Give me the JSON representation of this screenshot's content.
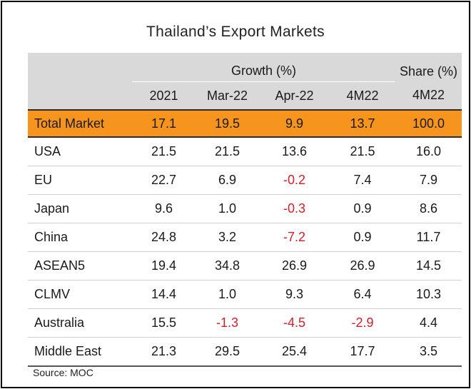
{
  "chart_data": {
    "type": "table",
    "title": "Thailand’s Export Markets",
    "group_headers": {
      "growth": "Growth (%)",
      "share": "Share (%)"
    },
    "columns": [
      "2021",
      "Mar-22",
      "Apr-22",
      "4M22",
      "4M22"
    ],
    "total": {
      "label": "Total Market",
      "values": [
        "17.1",
        "19.5",
        "9.9",
        "13.7",
        "100.0"
      ]
    },
    "rows": [
      {
        "label": "USA",
        "values": [
          "21.5",
          "21.5",
          "13.6",
          "21.5",
          "16.0"
        ]
      },
      {
        "label": "EU",
        "values": [
          "22.7",
          "6.9",
          "-0.2",
          "7.4",
          "7.9"
        ]
      },
      {
        "label": "Japan",
        "values": [
          "9.6",
          "1.0",
          "-0.3",
          "0.9",
          "8.6"
        ]
      },
      {
        "label": "China",
        "values": [
          "24.8",
          "3.2",
          "-7.2",
          "0.9",
          "11.7"
        ]
      },
      {
        "label": "ASEAN5",
        "values": [
          "19.4",
          "34.8",
          "26.9",
          "26.9",
          "14.5"
        ]
      },
      {
        "label": "CLMV",
        "values": [
          "14.4",
          "1.0",
          "9.3",
          "6.4",
          "10.3"
        ]
      },
      {
        "label": "Australia",
        "values": [
          "15.5",
          "-1.3",
          "-4.5",
          "-2.9",
          "4.4"
        ]
      },
      {
        "label": "Middle East",
        "values": [
          "21.3",
          "29.5",
          "25.4",
          "17.7",
          "3.5"
        ]
      }
    ],
    "source": "Source: MOC"
  },
  "colors": {
    "header_bg": "#d9d9d9",
    "total_bg": "#f7941d",
    "negative": "#d0202a",
    "text": "#1a1a1a"
  }
}
